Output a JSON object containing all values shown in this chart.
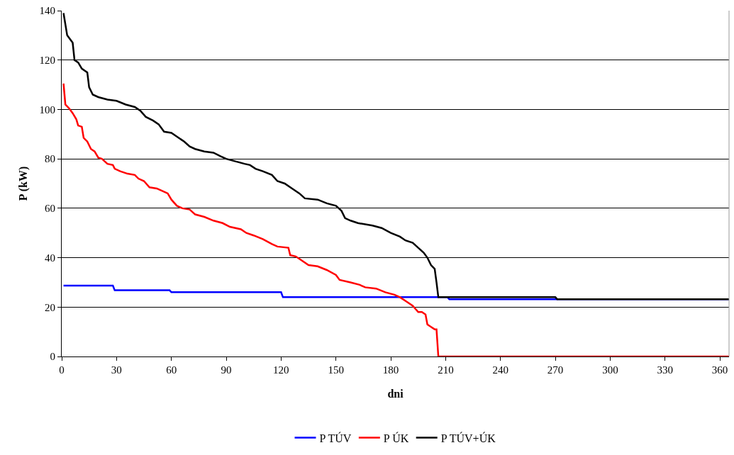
{
  "chart_data": {
    "type": "line",
    "xlabel": "dni",
    "ylabel": "P (kW)",
    "xlim": [
      0,
      365
    ],
    "xticks": [
      0,
      30,
      60,
      90,
      120,
      150,
      180,
      210,
      240,
      270,
      300,
      330,
      360
    ],
    "ylim": [
      0,
      140
    ],
    "yticks": [
      0,
      20,
      40,
      60,
      80,
      100,
      120,
      140
    ],
    "grid": "y",
    "legend": "bottom",
    "marker": "none",
    "line_style": "solid",
    "series": [
      {
        "name": "P TÚV",
        "color": "#0000ff",
        "x": [
          1,
          28,
          29,
          59,
          60,
          120,
          121,
          211,
          212,
          365
        ],
        "values": [
          28.7,
          28.7,
          26.8,
          26.8,
          26,
          26,
          24,
          24,
          23.2,
          23.2
        ]
      },
      {
        "name": "P ÚK",
        "color": "#ff0000",
        "x": [
          1,
          2,
          4,
          6,
          8,
          9,
          11,
          12,
          14,
          16,
          18,
          20,
          22,
          25,
          28,
          29,
          32,
          36,
          40,
          42,
          45,
          48,
          52,
          55,
          58,
          60,
          63,
          66,
          70,
          73,
          78,
          83,
          88,
          92,
          98,
          101,
          105,
          110,
          115,
          118,
          124,
          125,
          128,
          131,
          135,
          140,
          145,
          150,
          152,
          158,
          163,
          166,
          172,
          177,
          182,
          185,
          188,
          192,
          195,
          197,
          199,
          200,
          202,
          204,
          205,
          206,
          365
        ],
        "values": [
          110.5,
          102,
          100.5,
          98.5,
          96,
          93.5,
          93,
          88.5,
          87,
          84,
          83,
          80.5,
          80,
          78,
          77.5,
          76,
          75,
          74,
          73.5,
          72,
          71,
          68.5,
          68,
          67,
          66,
          63.5,
          61,
          60,
          59.5,
          57.5,
          56.5,
          55,
          54,
          52.5,
          51.5,
          50,
          49,
          47.5,
          45.5,
          44.5,
          44,
          41,
          40.5,
          39,
          37,
          36.5,
          35,
          33,
          31,
          30,
          29,
          28,
          27.5,
          26,
          25,
          24,
          22.5,
          20.5,
          18,
          18,
          17,
          13,
          12,
          11,
          11,
          0,
          0
        ]
      },
      {
        "name": "P TÚV+ÚK",
        "color": "#000000",
        "x": [
          1,
          3,
          6,
          7,
          9,
          11,
          14,
          15,
          17,
          20,
          25,
          30,
          35,
          40,
          43,
          46,
          50,
          53,
          56,
          60,
          63,
          67,
          70,
          73,
          78,
          83,
          87,
          90,
          95,
          100,
          103,
          106,
          110,
          115,
          118,
          122,
          126,
          130,
          133,
          140,
          145,
          150,
          153,
          155,
          158,
          162,
          170,
          175,
          180,
          185,
          188,
          192,
          195,
          198,
          200,
          202,
          204,
          205,
          206,
          270,
          271,
          365
        ],
        "values": [
          139,
          130,
          127,
          120,
          119,
          116.5,
          115,
          109,
          106,
          105,
          104,
          103.5,
          102,
          101,
          99.5,
          97,
          95.5,
          94,
          91,
          90.5,
          89,
          87,
          85,
          84,
          83,
          82.5,
          81,
          80,
          79,
          78,
          77.5,
          76,
          75,
          73.5,
          71,
          70,
          68,
          66,
          64,
          63.5,
          62,
          61,
          59,
          56,
          55,
          54,
          53,
          52,
          50,
          48.5,
          47,
          46,
          44,
          42,
          40,
          37,
          35.5,
          30,
          24,
          24,
          23.2,
          23.2
        ]
      }
    ]
  }
}
